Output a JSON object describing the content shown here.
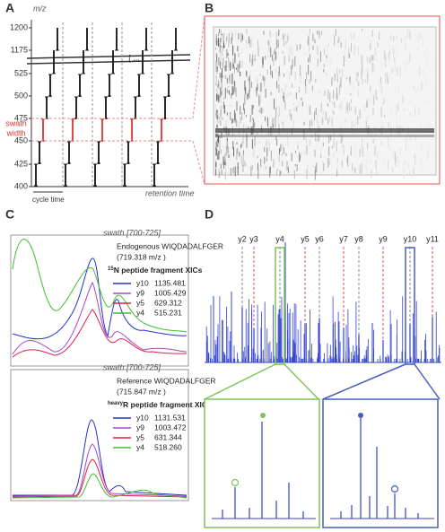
{
  "panels": {
    "a": {
      "letter": "A",
      "axis_label": "m/z",
      "ticks": [
        1200,
        1175,
        525,
        500,
        475,
        450,
        425,
        400
      ],
      "swath_label": "swath",
      "width_label": "width",
      "ellipsis": "[ ... ]",
      "cycle_label": "cycle time",
      "retention_label": "retention time"
    },
    "b": {
      "letter": "B"
    },
    "c": {
      "letter": "C",
      "top": {
        "swath": "swath [700-725]",
        "peptide": "Endogenous WIQDADALFGER",
        "mz": "(719.318 m/z )",
        "xic_sup": "15",
        "xic_text": "N peptide fragment XICs",
        "legend": [
          [
            "y10",
            "1135.481"
          ],
          [
            "y9",
            "1005.429"
          ],
          [
            "y5",
            "629.312"
          ],
          [
            "y4",
            "515.231"
          ]
        ]
      },
      "bottom": {
        "swath": "swath [700-725]",
        "peptide": "Reference WIQDADALFGER",
        "mz": "(715.847 m/z )",
        "xic_sup": "heavy",
        "xic_text": "R peptide fragment XICs",
        "legend": [
          [
            "y10",
            "1131.531"
          ],
          [
            "y9",
            "1003.472"
          ],
          [
            "y5",
            "631.344"
          ],
          [
            "y4",
            "518.260"
          ]
        ]
      }
    },
    "d": {
      "letter": "D",
      "ions": [
        "y2",
        "y3",
        "y4",
        "y5",
        "y6",
        "y7",
        "y8",
        "y9",
        "y10",
        "y11"
      ]
    }
  }
}
